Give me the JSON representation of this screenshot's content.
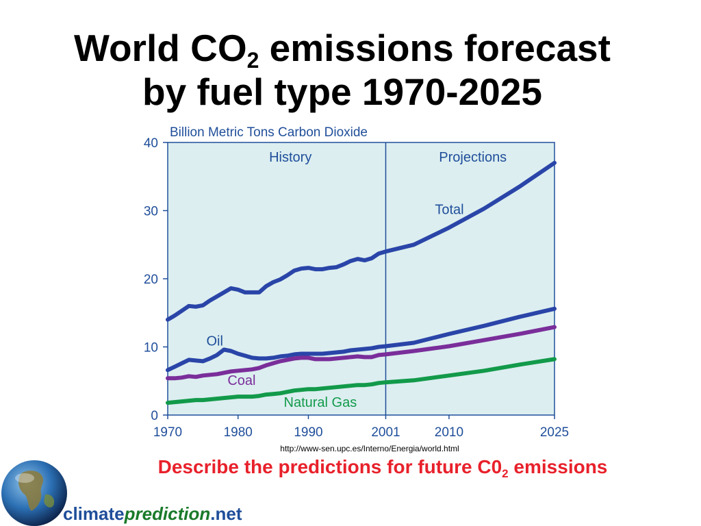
{
  "slide": {
    "title_line1_pre": "World CO",
    "title_line1_sub": "2",
    "title_line1_post": " emissions forecast",
    "title_line2": "by fuel type 1970-2025",
    "source_url": "http://www-sen.upc.es/Interno/Energia/world.html",
    "prompt_pre": "Describe the predictions for future C0",
    "prompt_sub": "2",
    "prompt_post": " emissions",
    "logo": {
      "part1": "climate",
      "part2": "prediction",
      "part3": ".net"
    }
  },
  "colors": {
    "plot_bg": "#dceef0",
    "axis_text": "#1f4e9a",
    "total": "#2a45a8",
    "oil": "#2a45a8",
    "coal": "#7a2e9a",
    "gas": "#129a4a",
    "title": "#000000",
    "prompt": "#e8212b"
  },
  "chart_data": {
    "type": "line",
    "title": "Billion Metric Tons Carbon Dioxide",
    "xlabel": "",
    "ylabel": "Billion Metric Tons Carbon Dioxide",
    "xlim": [
      1970,
      2025
    ],
    "ylim": [
      0,
      40
    ],
    "yticks": [
      0,
      10,
      20,
      30,
      40
    ],
    "xticks": [
      1970,
      1980,
      1990,
      2001,
      2010,
      2025
    ],
    "grid": false,
    "divider_year": 2001,
    "region_labels": [
      "History",
      "Projections"
    ],
    "series": [
      {
        "name": "Total",
        "x": [
          1970,
          1971,
          1972,
          1973,
          1974,
          1975,
          1976,
          1977,
          1978,
          1979,
          1980,
          1981,
          1982,
          1983,
          1984,
          1985,
          1986,
          1987,
          1988,
          1989,
          1990,
          1991,
          1992,
          1993,
          1994,
          1995,
          1996,
          1997,
          1998,
          1999,
          2000,
          2001,
          2005,
          2010,
          2015,
          2020,
          2025
        ],
        "y": [
          14.0,
          14.6,
          15.3,
          16.0,
          15.9,
          16.1,
          16.8,
          17.4,
          18.0,
          18.6,
          18.4,
          18.0,
          18.0,
          18.0,
          18.9,
          19.5,
          19.9,
          20.5,
          21.2,
          21.5,
          21.6,
          21.4,
          21.4,
          21.6,
          21.7,
          22.1,
          22.6,
          22.9,
          22.7,
          23.0,
          23.7,
          24.0,
          25.0,
          27.5,
          30.3,
          33.5,
          37.0
        ]
      },
      {
        "name": "Oil",
        "x": [
          1970,
          1971,
          1972,
          1973,
          1974,
          1975,
          1976,
          1977,
          1978,
          1979,
          1980,
          1981,
          1982,
          1983,
          1984,
          1985,
          1986,
          1987,
          1988,
          1989,
          1990,
          1991,
          1992,
          1993,
          1994,
          1995,
          1996,
          1997,
          1998,
          1999,
          2000,
          2001,
          2005,
          2010,
          2015,
          2020,
          2025
        ],
        "y": [
          6.6,
          7.1,
          7.6,
          8.1,
          8.0,
          7.9,
          8.3,
          8.8,
          9.6,
          9.4,
          9.0,
          8.7,
          8.4,
          8.3,
          8.3,
          8.4,
          8.6,
          8.7,
          8.9,
          9.0,
          9.0,
          9.0,
          9.0,
          9.1,
          9.2,
          9.3,
          9.5,
          9.6,
          9.7,
          9.8,
          10.0,
          10.1,
          10.6,
          11.9,
          13.1,
          14.4,
          15.6
        ]
      },
      {
        "name": "Coal",
        "x": [
          1970,
          1971,
          1972,
          1973,
          1974,
          1975,
          1976,
          1977,
          1978,
          1979,
          1980,
          1981,
          1982,
          1983,
          1984,
          1985,
          1986,
          1987,
          1988,
          1989,
          1990,
          1991,
          1992,
          1993,
          1994,
          1995,
          1996,
          1997,
          1998,
          1999,
          2000,
          2001,
          2005,
          2010,
          2015,
          2020,
          2025
        ],
        "y": [
          5.4,
          5.4,
          5.5,
          5.7,
          5.6,
          5.8,
          5.9,
          6.0,
          6.2,
          6.4,
          6.5,
          6.6,
          6.7,
          6.9,
          7.3,
          7.6,
          7.9,
          8.1,
          8.3,
          8.4,
          8.4,
          8.2,
          8.2,
          8.2,
          8.3,
          8.4,
          8.5,
          8.6,
          8.5,
          8.5,
          8.8,
          8.9,
          9.4,
          10.1,
          11.0,
          11.9,
          12.9
        ]
      },
      {
        "name": "Natural Gas",
        "x": [
          1970,
          1971,
          1972,
          1973,
          1974,
          1975,
          1976,
          1977,
          1978,
          1979,
          1980,
          1981,
          1982,
          1983,
          1984,
          1985,
          1986,
          1987,
          1988,
          1989,
          1990,
          1991,
          1992,
          1993,
          1994,
          1995,
          1996,
          1997,
          1998,
          1999,
          2000,
          2001,
          2005,
          2010,
          2015,
          2020,
          2025
        ],
        "y": [
          1.8,
          1.9,
          2.0,
          2.1,
          2.2,
          2.2,
          2.3,
          2.4,
          2.5,
          2.6,
          2.7,
          2.7,
          2.7,
          2.8,
          3.0,
          3.1,
          3.2,
          3.4,
          3.6,
          3.7,
          3.8,
          3.8,
          3.9,
          4.0,
          4.1,
          4.2,
          4.3,
          4.4,
          4.4,
          4.5,
          4.7,
          4.8,
          5.1,
          5.8,
          6.5,
          7.4,
          8.2
        ]
      }
    ],
    "series_labels": [
      "Total",
      "Oil",
      "Coal",
      "Natural Gas"
    ]
  }
}
